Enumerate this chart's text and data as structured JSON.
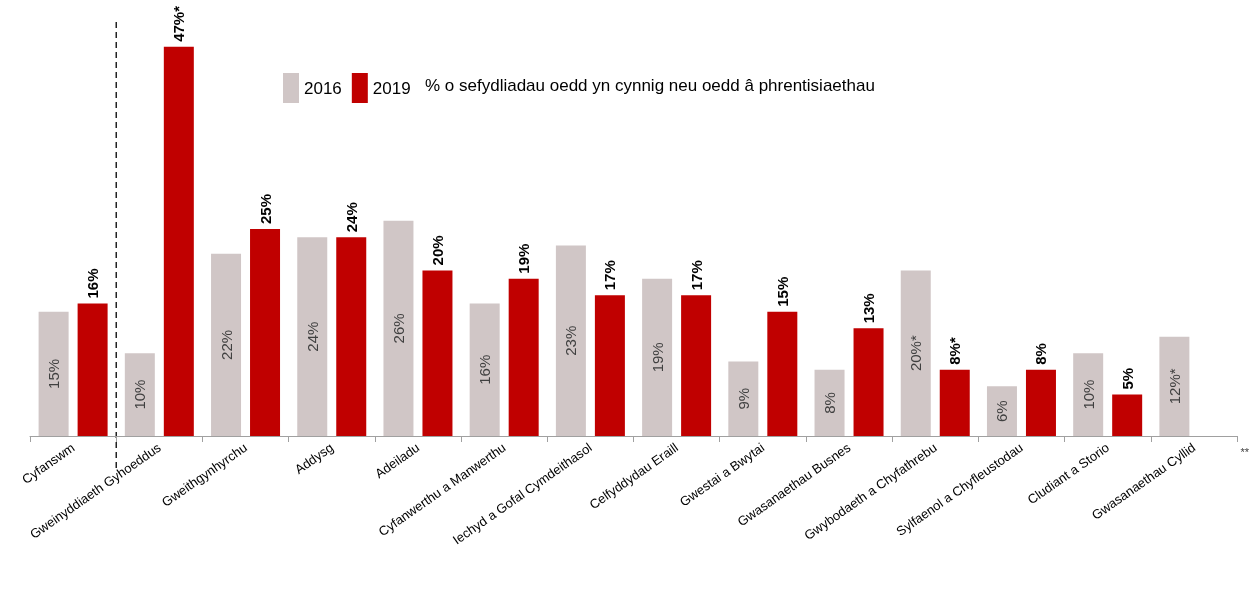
{
  "chart_data": {
    "type": "bar",
    "title": "% o sefydliadau oedd yn cynnig neu oedd â phrentisiaethau",
    "categories": [
      "Cyfanswm",
      "Gweinyddiaeth Gyhoeddus",
      "Gweithgynhyrchu",
      "Addysg",
      "Adeiladu",
      "Cyfanwerthu a Manwerthu",
      "Iechyd a Gofal Cymdeithasol",
      "Celfyddydau Eraill",
      "Gwestai a Bwytai",
      "Gwasanaethau Busnes",
      "Gwybodaeth a Chyfathrebu",
      "Sylfaenol a Chyfleustodau",
      "Cludiant a Storio",
      "Gwasanaethau Cyllid"
    ],
    "series": [
      {
        "name": "2016",
        "color": "#d0c6c6",
        "values": [
          15,
          10,
          22,
          24,
          26,
          16,
          23,
          19,
          9,
          8,
          20,
          6,
          10,
          12
        ],
        "value_labels": [
          "15%",
          "10%",
          "22%",
          "24%",
          "26%",
          "16%",
          "23%",
          "19%",
          "9%",
          "8%",
          "20%*",
          "6%",
          "10%",
          "12%*"
        ]
      },
      {
        "name": "2019",
        "color": "#c00000",
        "values": [
          16,
          47,
          25,
          24,
          20,
          19,
          17,
          17,
          15,
          13,
          8,
          8,
          5,
          null
        ],
        "value_labels": [
          "16%",
          "47%*",
          "25%",
          "24%",
          "20%",
          "19%",
          "17%",
          "17%",
          "15%",
          "13%",
          "8%*",
          "8%",
          "5%",
          null
        ]
      }
    ],
    "legend": "top",
    "grid": false,
    "annotations": [
      "**"
    ]
  }
}
